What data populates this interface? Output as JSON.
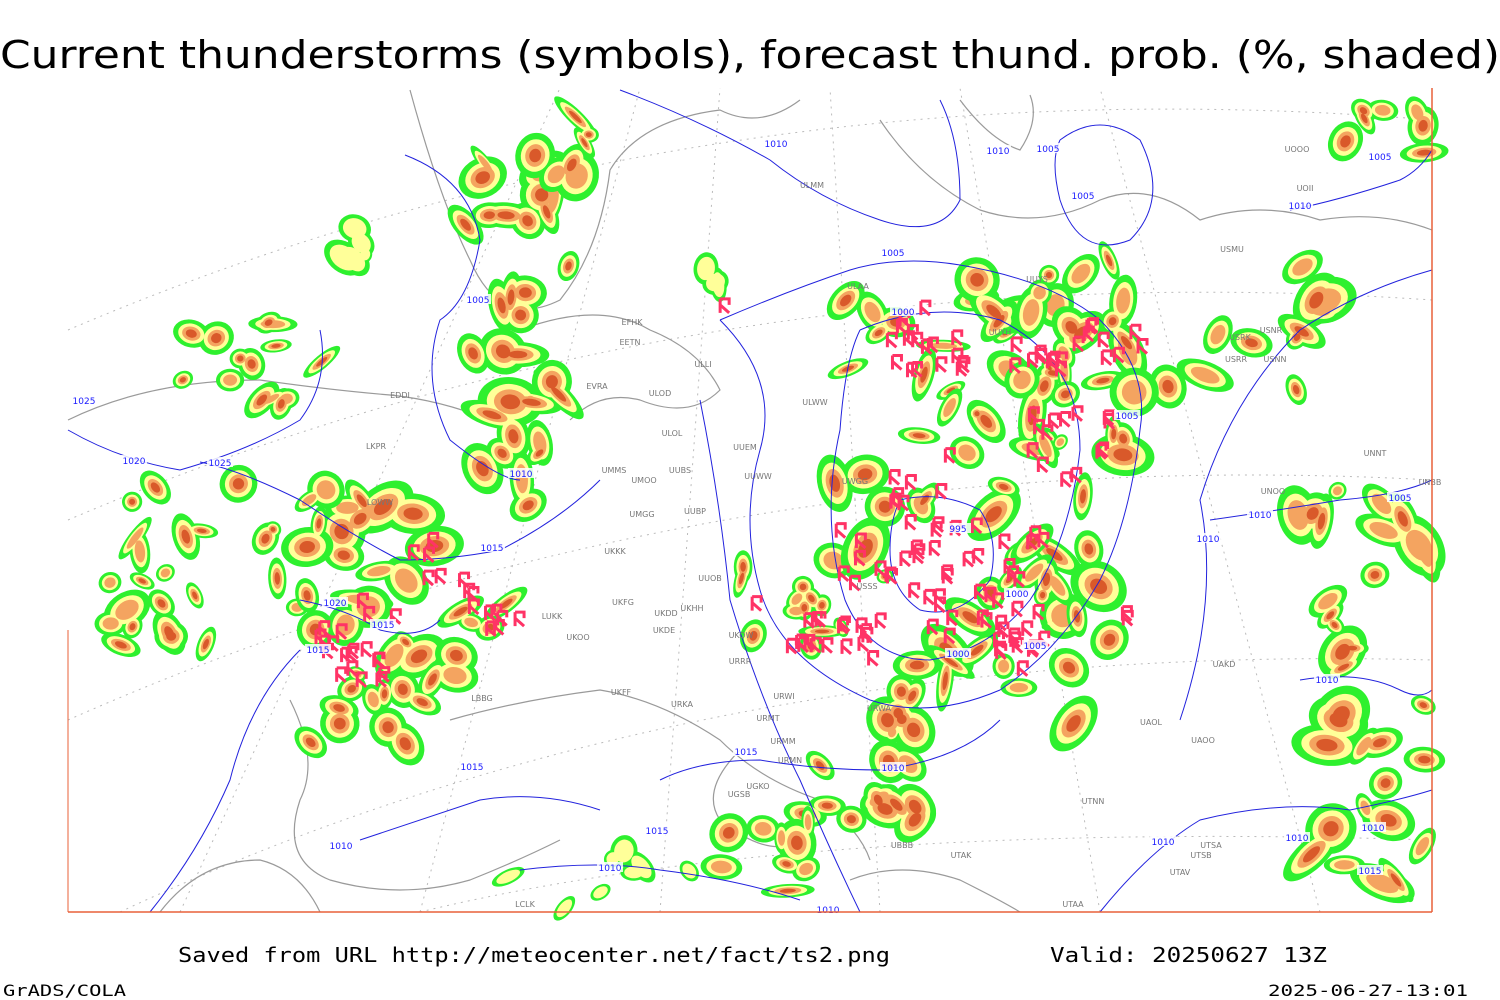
{
  "header": {
    "title": "Current thunderstorms (symbols), forecast thund. prob. (%, shaded)"
  },
  "footer": {
    "source": "Saved from URL http://meteocenter.net/fact/ts2.png",
    "valid": "Valid: 20250627 13Z",
    "software": "GrADS/COLA",
    "timestamp": "2025-06-27-13:01"
  },
  "map": {
    "isobar_labels": [
      "1005",
      "1010",
      "1010",
      "1005",
      "1010",
      "1005",
      "1005",
      "1005",
      "1000",
      "1025",
      "1020",
      "1025",
      "1010",
      "1015",
      "1020",
      "1015",
      "1015",
      "1005",
      "1005",
      "1010",
      "1010",
      "995",
      "1000",
      "1000",
      "1005",
      "1010",
      "1015",
      "1015",
      "1010",
      "1015",
      "1010",
      "1010",
      "1010",
      "1010",
      "1010",
      "1015",
      "1010"
    ],
    "stations": [
      "ULMM",
      "ULAA",
      "UUYS",
      "USMU",
      "UOOO",
      "UOII",
      "EFHK",
      "EETN",
      "ULLI",
      "ULWW",
      "ULOD",
      "ULOL",
      "EVRA",
      "UUEM",
      "UMMS",
      "UMOO",
      "UUBS",
      "UUWW",
      "UMGG",
      "UUBP",
      "UKKK",
      "UUOB",
      "UKHH",
      "UKFG",
      "UKDD",
      "UKDE",
      "LUKK",
      "UKOO",
      "UKOW",
      "URRR",
      "URWI",
      "URKA",
      "UKFF",
      "URMT",
      "URMM",
      "URMN",
      "URWA",
      "UGKO",
      "UGSB",
      "UTNN",
      "UAOL",
      "UAOO",
      "UAKD",
      "UTAK",
      "UBBB",
      "UTSA",
      "UTSB",
      "UTAV",
      "UTAA",
      "UNNT",
      "UNBB",
      "UNOO",
      "USRR",
      "USNN",
      "USRK",
      "USNR",
      "EDDI",
      "LOWW",
      "LKPR",
      "LBBG",
      "LCLK",
      "USSS",
      "UWGG",
      "UUYH"
    ]
  }
}
